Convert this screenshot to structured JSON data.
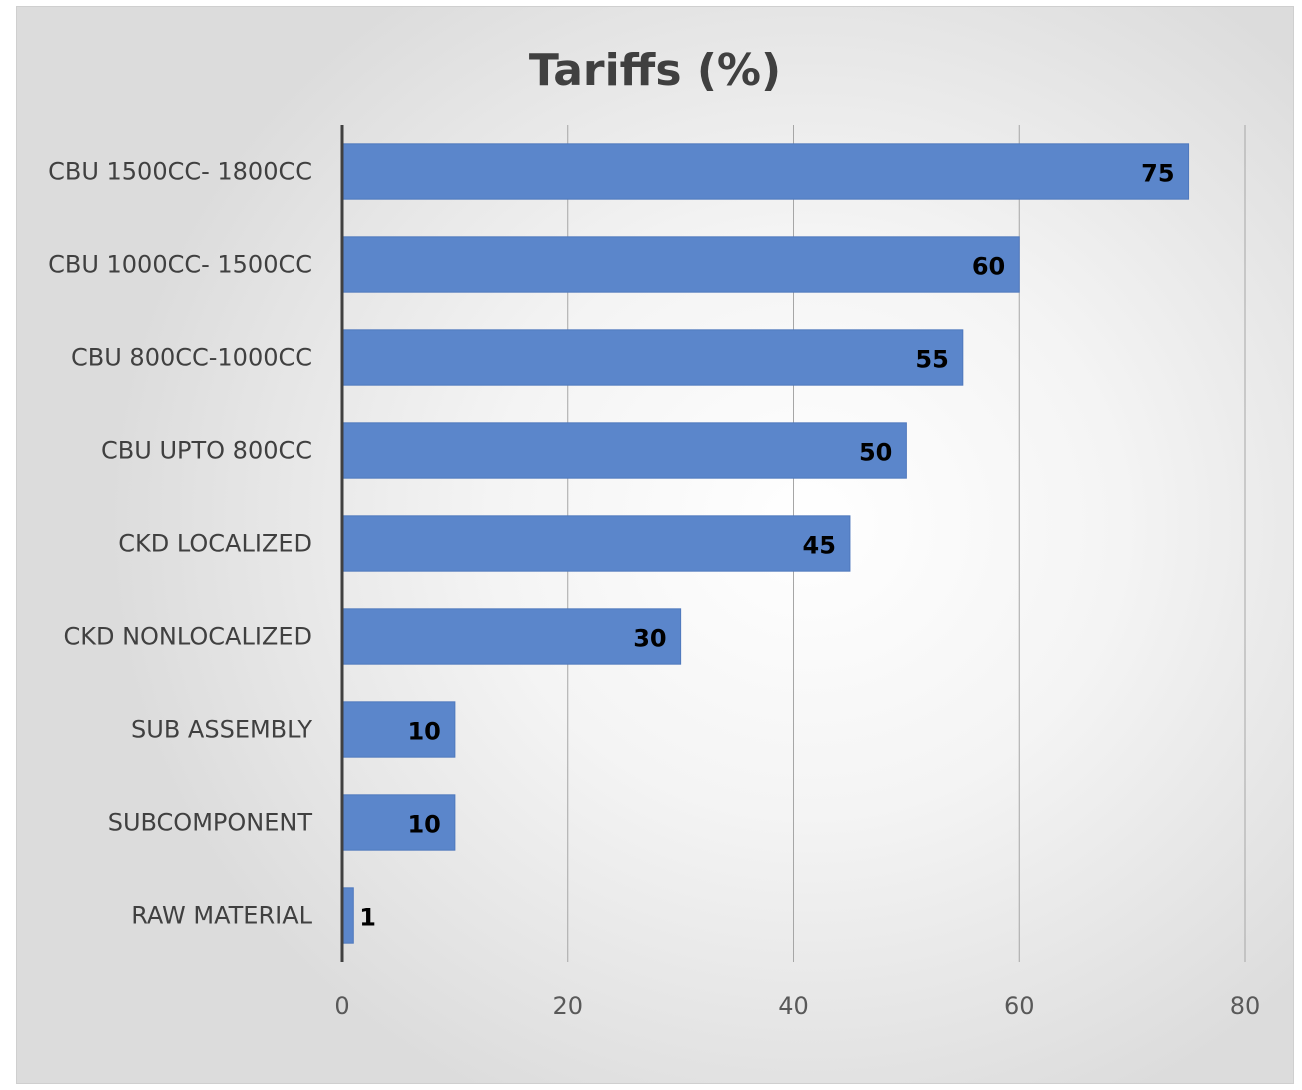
{
  "chart_data": {
    "type": "bar",
    "orientation": "horizontal",
    "title": "Tariffs (%)",
    "xlabel": "",
    "ylabel": "",
    "categories": [
      "CBU 1500CC- 1800CC",
      "CBU 1000CC- 1500CC",
      "CBU 800CC-1000CC",
      "CBU UPTO 800CC",
      "CKD LOCALIZED",
      "CKD NONLOCALIZED",
      "SUB ASSEMBLY",
      "SUBCOMPONENT",
      "RAW MATERIAL"
    ],
    "values": [
      75,
      60,
      55,
      50,
      45,
      30,
      10,
      10,
      1
    ],
    "xlim": [
      0,
      80
    ],
    "xticks": [
      0,
      20,
      40,
      60,
      80
    ],
    "tick_labels": [
      "0",
      "20",
      "40",
      "60",
      "80"
    ],
    "data_labels": [
      "75",
      "60",
      "55",
      "50",
      "45",
      "30",
      "10",
      "10",
      "1"
    ],
    "grid": "vertical",
    "legend": "none",
    "colors": {
      "bar": "#5b86cb",
      "bar_edge": "#4f78bd",
      "axis": "#404040",
      "grid": "#a6a6a6"
    }
  }
}
